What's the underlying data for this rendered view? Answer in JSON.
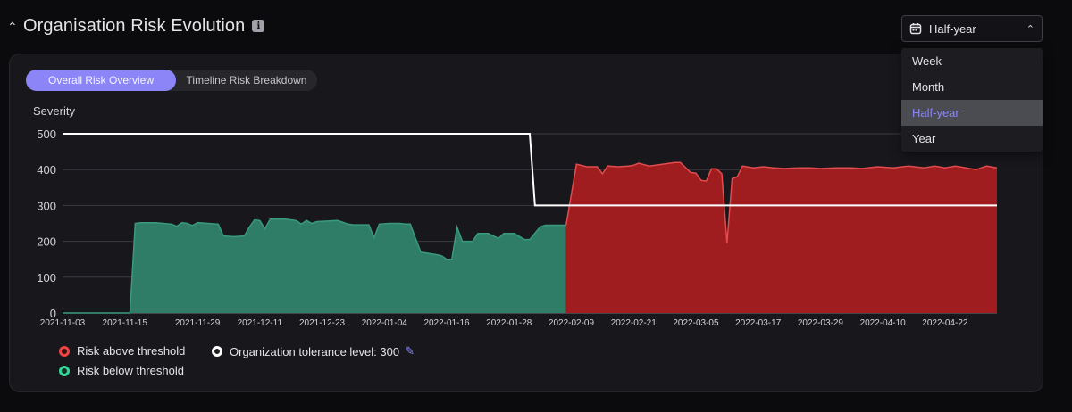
{
  "header": {
    "collapse_icon": "chevron-up-icon",
    "title": "Organisation Risk Evolution",
    "info_label": "i"
  },
  "range_select": {
    "icon": "calendar-icon",
    "value": "Half-year",
    "chevron": "⌃",
    "options": [
      "Week",
      "Month",
      "Half-year",
      "Year"
    ],
    "selected_index": 2
  },
  "tabs": [
    {
      "label": "Overall Risk Overview",
      "active": true
    },
    {
      "label": "Timeline Risk Breakdown",
      "active": false
    }
  ],
  "legend": {
    "above": {
      "label": "Risk above threshold",
      "color": "#ef4444"
    },
    "below": {
      "label": "Risk below threshold",
      "color": "#34d399"
    },
    "tolerance": {
      "label": "Organization tolerance level: 300",
      "color": "#ffffff",
      "edit_icon": "pencil-icon"
    }
  },
  "chart_data": {
    "type": "area",
    "ylabel": "Severity",
    "ylim": [
      0,
      500
    ],
    "yticks": [
      0,
      100,
      200,
      300,
      400,
      500
    ],
    "xlim": [
      "2021-11-03",
      "2022-05-02"
    ],
    "xticks": [
      "2021-11-03",
      "2021-11-15",
      "2021-11-29",
      "2021-12-11",
      "2021-12-23",
      "2022-01-04",
      "2022-01-16",
      "2022-01-28",
      "2022-02-09",
      "2022-02-21",
      "2022-03-05",
      "2022-03-17",
      "2022-03-29",
      "2022-04-10",
      "2022-04-22"
    ],
    "grid": true,
    "colors": {
      "above": "#9f1c1f",
      "above_line": "#e24c4e",
      "below": "#2f7d66",
      "below_line": "#3a9a7c",
      "tolerance": "#ffffff"
    },
    "tolerance": {
      "x": [
        "2021-11-03",
        "2022-02-01",
        "2022-02-02",
        "2022-05-02"
      ],
      "y": [
        500,
        500,
        300,
        300
      ]
    },
    "series": [
      {
        "x": [
          "2021-11-03",
          "2021-11-16",
          "2021-11-17",
          "2021-11-18",
          "2021-11-21",
          "2021-11-24",
          "2021-11-25",
          "2021-11-26",
          "2021-11-27",
          "2021-11-28",
          "2021-11-29",
          "2021-12-01",
          "2021-12-03",
          "2021-12-04",
          "2021-12-06",
          "2021-12-08",
          "2021-12-09",
          "2021-12-10",
          "2021-12-11",
          "2021-12-12",
          "2021-12-13",
          "2021-12-16",
          "2021-12-18",
          "2021-12-19",
          "2021-12-20",
          "2021-12-21",
          "2021-12-22",
          "2021-12-26",
          "2021-12-28",
          "2021-12-29",
          "2022-01-01",
          "2022-01-02",
          "2022-01-03",
          "2022-01-05",
          "2022-01-07",
          "2022-01-08",
          "2022-01-09",
          "2022-01-10",
          "2022-01-11",
          "2022-01-14",
          "2022-01-15",
          "2022-01-16",
          "2022-01-17",
          "2022-01-18",
          "2022-01-19",
          "2022-01-21",
          "2022-01-22",
          "2022-01-24",
          "2022-01-26",
          "2022-01-27",
          "2022-01-29",
          "2022-01-31",
          "2022-02-01",
          "2022-02-03",
          "2022-02-04",
          "2022-02-07",
          "2022-02-08",
          "2022-02-10",
          "2022-02-12",
          "2022-02-14",
          "2022-02-15",
          "2022-02-16",
          "2022-02-18",
          "2022-02-20",
          "2022-02-21",
          "2022-02-22",
          "2022-02-24",
          "2022-03-01",
          "2022-03-02",
          "2022-03-04",
          "2022-03-05",
          "2022-03-06",
          "2022-03-07",
          "2022-03-08",
          "2022-03-09",
          "2022-03-10",
          "2022-03-11",
          "2022-03-12",
          "2022-03-13",
          "2022-03-14",
          "2022-03-16",
          "2022-03-18",
          "2022-03-20",
          "2022-03-22",
          "2022-03-25",
          "2022-03-27",
          "2022-03-29",
          "2022-04-01",
          "2022-04-04",
          "2022-04-06",
          "2022-04-09",
          "2022-04-12",
          "2022-04-15",
          "2022-04-18",
          "2022-04-20",
          "2022-04-22",
          "2022-04-24",
          "2022-04-26",
          "2022-04-28",
          "2022-04-30",
          "2022-05-02"
        ],
        "y": [
          0,
          0,
          250,
          252,
          252,
          248,
          242,
          252,
          250,
          244,
          252,
          250,
          248,
          215,
          213,
          215,
          240,
          260,
          258,
          235,
          262,
          262,
          258,
          248,
          258,
          250,
          255,
          258,
          248,
          246,
          246,
          210,
          248,
          250,
          250,
          248,
          248,
          208,
          170,
          163,
          160,
          150,
          150,
          240,
          200,
          200,
          222,
          222,
          208,
          222,
          222,
          205,
          205,
          240,
          245,
          245,
          245,
          415,
          408,
          408,
          388,
          410,
          408,
          410,
          412,
          418,
          410,
          420,
          420,
          392,
          390,
          370,
          368,
          402,
          402,
          388,
          195,
          375,
          380,
          410,
          405,
          408,
          405,
          403,
          405,
          405,
          403,
          405,
          405,
          403,
          408,
          405,
          410,
          405,
          410,
          405,
          410,
          405,
          400,
          410,
          405
        ]
      }
    ]
  }
}
